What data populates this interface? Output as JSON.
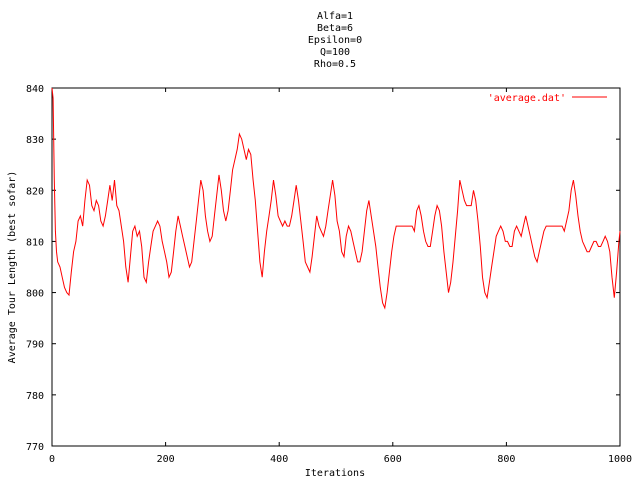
{
  "chart_data": {
    "type": "line",
    "title_lines": [
      "Alfa=1",
      "Beta=6",
      "Epsilon=0",
      "Q=100",
      "Rho=0.5"
    ],
    "xlabel": "Iterations",
    "ylabel": "Average Tour Length (best sofar)",
    "xlim": [
      0,
      1000
    ],
    "ylim": [
      770,
      840
    ],
    "xticks": [
      "0",
      "200",
      "400",
      "600",
      "800",
      "1000"
    ],
    "yticks": [
      "770",
      "780",
      "790",
      "800",
      "810",
      "820",
      "830",
      "840"
    ],
    "grid": false,
    "legend_position": "top-right",
    "series": [
      {
        "name": "'average.dat'",
        "color": "#ff0000",
        "points": [
          [
            0,
            840
          ],
          [
            2,
            838
          ],
          [
            4,
            822
          ],
          [
            6,
            812
          ],
          [
            8,
            808
          ],
          [
            10,
            806
          ],
          [
            14,
            805
          ],
          [
            18,
            803
          ],
          [
            22,
            801
          ],
          [
            26,
            800
          ],
          [
            30,
            799.5
          ],
          [
            34,
            804
          ],
          [
            38,
            808
          ],
          [
            42,
            810
          ],
          [
            46,
            814
          ],
          [
            50,
            815
          ],
          [
            54,
            813
          ],
          [
            58,
            818
          ],
          [
            62,
            822
          ],
          [
            66,
            821
          ],
          [
            70,
            817
          ],
          [
            74,
            816
          ],
          [
            78,
            818
          ],
          [
            82,
            817
          ],
          [
            86,
            814
          ],
          [
            90,
            813
          ],
          [
            94,
            815
          ],
          [
            98,
            818
          ],
          [
            102,
            821
          ],
          [
            106,
            818
          ],
          [
            110,
            822
          ],
          [
            114,
            817
          ],
          [
            118,
            816
          ],
          [
            122,
            813
          ],
          [
            126,
            810
          ],
          [
            130,
            805
          ],
          [
            134,
            802
          ],
          [
            138,
            807
          ],
          [
            142,
            812
          ],
          [
            146,
            813
          ],
          [
            150,
            811
          ],
          [
            154,
            812
          ],
          [
            158,
            809
          ],
          [
            162,
            803
          ],
          [
            166,
            802
          ],
          [
            170,
            806
          ],
          [
            174,
            809
          ],
          [
            178,
            812
          ],
          [
            182,
            813
          ],
          [
            186,
            814
          ],
          [
            190,
            813
          ],
          [
            194,
            810
          ],
          [
            198,
            808
          ],
          [
            202,
            806
          ],
          [
            206,
            803
          ],
          [
            210,
            804
          ],
          [
            214,
            808
          ],
          [
            218,
            812
          ],
          [
            222,
            815
          ],
          [
            226,
            813
          ],
          [
            230,
            811
          ],
          [
            234,
            809
          ],
          [
            238,
            807
          ],
          [
            242,
            805
          ],
          [
            246,
            806
          ],
          [
            250,
            810
          ],
          [
            254,
            814
          ],
          [
            258,
            818
          ],
          [
            262,
            822
          ],
          [
            266,
            820
          ],
          [
            270,
            815
          ],
          [
            274,
            812
          ],
          [
            278,
            810
          ],
          [
            282,
            811
          ],
          [
            286,
            815
          ],
          [
            290,
            819
          ],
          [
            294,
            823
          ],
          [
            298,
            820
          ],
          [
            302,
            816
          ],
          [
            306,
            814
          ],
          [
            310,
            816
          ],
          [
            314,
            820
          ],
          [
            318,
            824
          ],
          [
            322,
            826
          ],
          [
            326,
            828
          ],
          [
            330,
            831
          ],
          [
            334,
            830
          ],
          [
            338,
            828
          ],
          [
            342,
            826
          ],
          [
            346,
            828
          ],
          [
            350,
            827
          ],
          [
            354,
            822
          ],
          [
            358,
            818
          ],
          [
            362,
            812
          ],
          [
            366,
            806
          ],
          [
            370,
            803
          ],
          [
            374,
            808
          ],
          [
            378,
            812
          ],
          [
            382,
            815
          ],
          [
            386,
            818
          ],
          [
            390,
            822
          ],
          [
            394,
            819
          ],
          [
            398,
            815
          ],
          [
            402,
            814
          ],
          [
            406,
            813
          ],
          [
            410,
            814
          ],
          [
            414,
            813
          ],
          [
            418,
            813
          ],
          [
            422,
            815
          ],
          [
            426,
            818
          ],
          [
            430,
            821
          ],
          [
            434,
            818
          ],
          [
            438,
            814
          ],
          [
            442,
            810
          ],
          [
            446,
            806
          ],
          [
            450,
            805
          ],
          [
            454,
            804
          ],
          [
            458,
            807
          ],
          [
            462,
            811
          ],
          [
            466,
            815
          ],
          [
            470,
            813
          ],
          [
            474,
            812
          ],
          [
            478,
            811
          ],
          [
            482,
            813
          ],
          [
            486,
            816
          ],
          [
            490,
            819
          ],
          [
            494,
            822
          ],
          [
            498,
            819
          ],
          [
            502,
            814
          ],
          [
            506,
            812
          ],
          [
            510,
            808
          ],
          [
            514,
            807
          ],
          [
            518,
            811
          ],
          [
            522,
            813
          ],
          [
            526,
            812
          ],
          [
            530,
            810
          ],
          [
            534,
            808
          ],
          [
            538,
            806
          ],
          [
            542,
            806
          ],
          [
            546,
            808
          ],
          [
            550,
            812
          ],
          [
            554,
            816
          ],
          [
            558,
            818
          ],
          [
            562,
            815
          ],
          [
            566,
            812
          ],
          [
            570,
            809
          ],
          [
            574,
            805
          ],
          [
            578,
            801
          ],
          [
            582,
            798
          ],
          [
            586,
            797
          ],
          [
            590,
            800
          ],
          [
            594,
            804
          ],
          [
            598,
            808
          ],
          [
            602,
            811
          ],
          [
            606,
            813
          ],
          [
            610,
            813
          ],
          [
            614,
            813
          ],
          [
            618,
            813
          ],
          [
            622,
            813
          ],
          [
            626,
            813
          ],
          [
            630,
            813
          ],
          [
            634,
            813
          ],
          [
            638,
            812
          ],
          [
            642,
            816
          ],
          [
            646,
            817
          ],
          [
            650,
            815
          ],
          [
            654,
            812
          ],
          [
            658,
            810
          ],
          [
            662,
            809
          ],
          [
            666,
            809
          ],
          [
            670,
            812
          ],
          [
            674,
            815
          ],
          [
            678,
            817
          ],
          [
            682,
            816
          ],
          [
            686,
            813
          ],
          [
            690,
            808
          ],
          [
            694,
            804
          ],
          [
            698,
            800
          ],
          [
            702,
            802
          ],
          [
            706,
            806
          ],
          [
            710,
            811
          ],
          [
            714,
            816
          ],
          [
            718,
            822
          ],
          [
            722,
            820
          ],
          [
            726,
            818
          ],
          [
            730,
            817
          ],
          [
            734,
            817
          ],
          [
            738,
            817
          ],
          [
            742,
            820
          ],
          [
            746,
            818
          ],
          [
            750,
            814
          ],
          [
            754,
            809
          ],
          [
            758,
            803
          ],
          [
            762,
            800
          ],
          [
            766,
            799
          ],
          [
            770,
            802
          ],
          [
            774,
            805
          ],
          [
            778,
            808
          ],
          [
            782,
            811
          ],
          [
            786,
            812
          ],
          [
            790,
            813
          ],
          [
            794,
            812
          ],
          [
            798,
            810
          ],
          [
            802,
            810
          ],
          [
            806,
            809
          ],
          [
            810,
            809
          ],
          [
            814,
            812
          ],
          [
            818,
            813
          ],
          [
            822,
            812
          ],
          [
            826,
            811
          ],
          [
            830,
            813
          ],
          [
            834,
            815
          ],
          [
            838,
            813
          ],
          [
            842,
            811
          ],
          [
            846,
            809
          ],
          [
            850,
            807
          ],
          [
            854,
            806
          ],
          [
            858,
            808
          ],
          [
            862,
            810
          ],
          [
            866,
            812
          ],
          [
            870,
            813
          ],
          [
            874,
            813
          ],
          [
            878,
            813
          ],
          [
            882,
            813
          ],
          [
            886,
            813
          ],
          [
            890,
            813
          ],
          [
            894,
            813
          ],
          [
            898,
            813
          ],
          [
            902,
            812
          ],
          [
            906,
            814
          ],
          [
            910,
            816
          ],
          [
            914,
            820
          ],
          [
            918,
            822
          ],
          [
            922,
            819
          ],
          [
            926,
            815
          ],
          [
            930,
            812
          ],
          [
            934,
            810
          ],
          [
            938,
            809
          ],
          [
            942,
            808
          ],
          [
            946,
            808
          ],
          [
            950,
            809
          ],
          [
            954,
            810
          ],
          [
            958,
            810
          ],
          [
            962,
            809
          ],
          [
            966,
            809
          ],
          [
            970,
            810
          ],
          [
            974,
            811
          ],
          [
            978,
            810
          ],
          [
            982,
            808
          ],
          [
            986,
            803
          ],
          [
            990,
            799
          ],
          [
            994,
            804
          ],
          [
            998,
            810
          ],
          [
            1000,
            812
          ]
        ]
      }
    ]
  }
}
